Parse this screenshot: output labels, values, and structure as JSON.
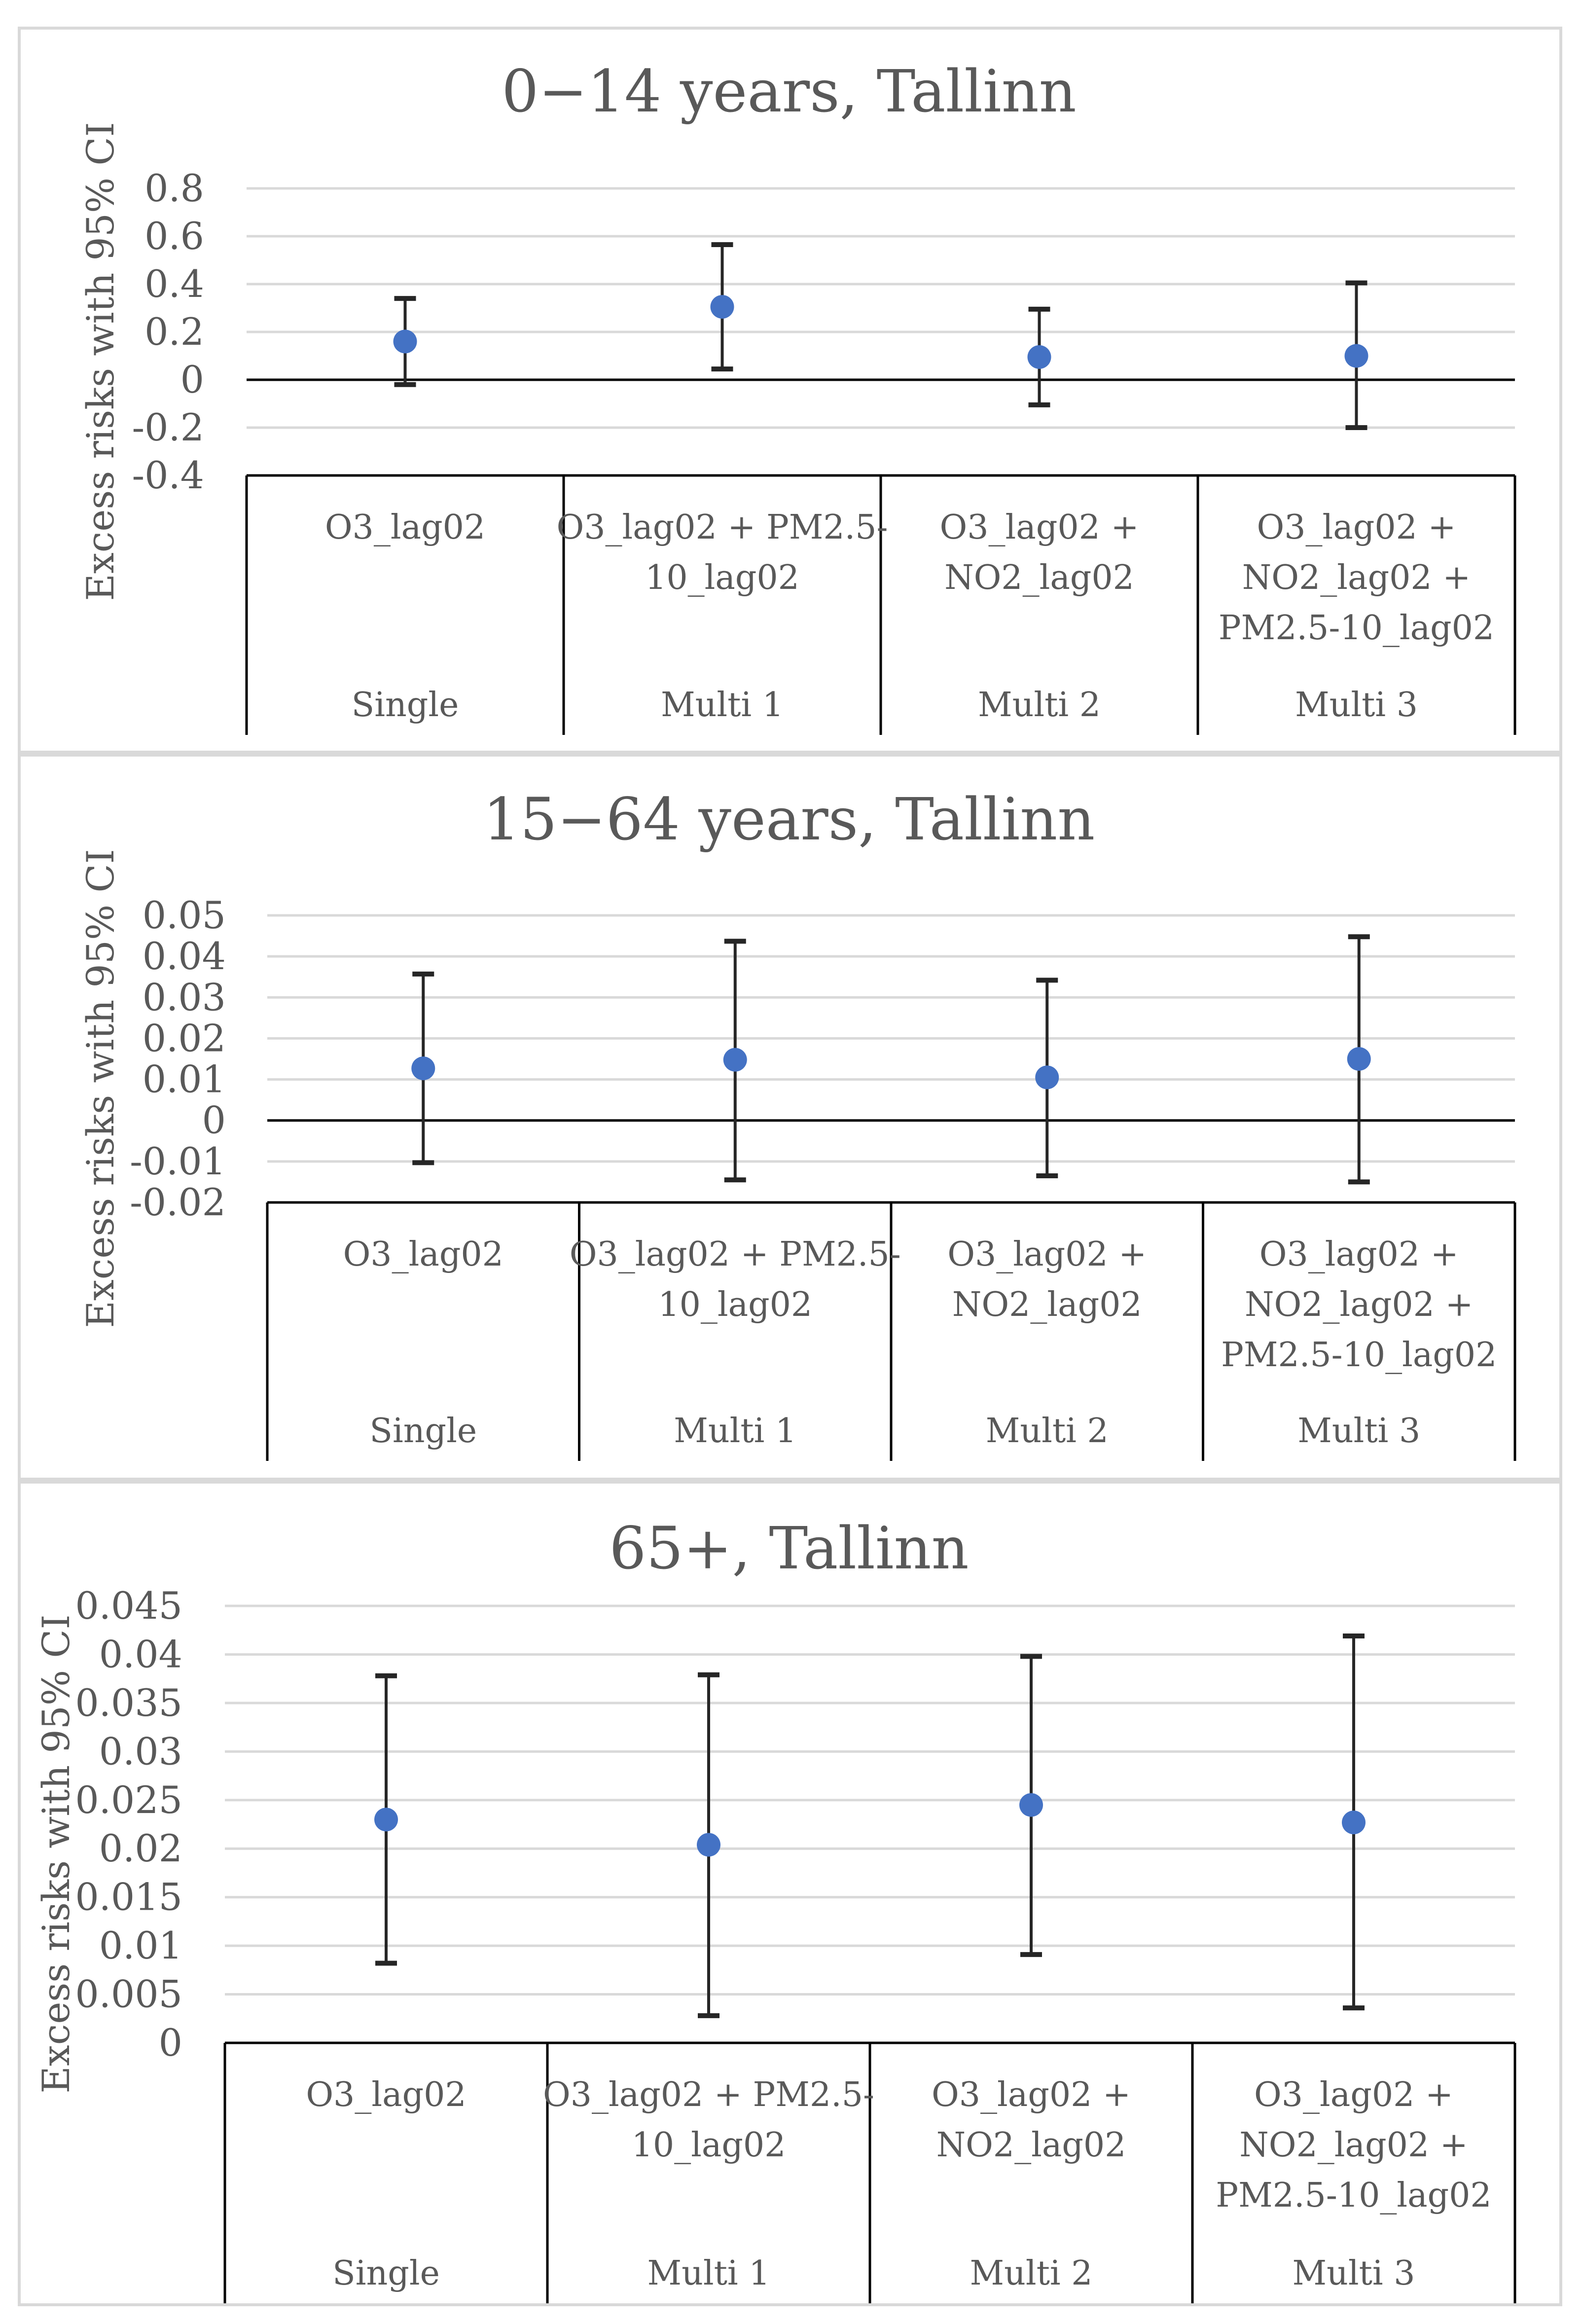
{
  "chart_data": [
    {
      "type": "scatter",
      "title": "0−14 years, Tallinn",
      "ylabel": "Excess risks with 95% CI",
      "ylim": [
        -0.4,
        0.8
      ],
      "yticks": [
        "0.8",
        "0.6",
        "0.4",
        "0.2",
        "0",
        "-0.2",
        "-0.4"
      ],
      "ytick_values": [
        0.8,
        0.6,
        0.4,
        0.2,
        0,
        -0.2,
        -0.4
      ],
      "categories": [
        {
          "model": "Single",
          "lines": [
            "O3_lag02"
          ]
        },
        {
          "model": "Multi 1",
          "lines": [
            "O3_lag02 + PM2.5-",
            "10_lag02"
          ]
        },
        {
          "model": "Multi 2",
          "lines": [
            "O3_lag02 +",
            "NO2_lag02"
          ]
        },
        {
          "model": "Multi 3",
          "lines": [
            "O3_lag02 +",
            "NO2_lag02 +",
            "PM2.5-10_lag02"
          ]
        }
      ],
      "estimate": [
        0.16,
        0.305,
        0.095,
        0.1
      ],
      "lower": [
        -0.02,
        0.045,
        -0.105,
        -0.2
      ],
      "upper": [
        0.34,
        0.565,
        0.295,
        0.405
      ]
    },
    {
      "type": "scatter",
      "title": "15−64 years, Tallinn",
      "ylabel": "Excess risks with 95% CI",
      "ylim": [
        -0.02,
        0.05
      ],
      "yticks": [
        "0.05",
        "0.04",
        "0.03",
        "0.02",
        "0.01",
        "0",
        "-0.01",
        "-0.02"
      ],
      "ytick_values": [
        0.05,
        0.04,
        0.03,
        0.02,
        0.01,
        0,
        -0.01,
        -0.02
      ],
      "categories": [
        {
          "model": "Single",
          "lines": [
            "O3_lag02"
          ]
        },
        {
          "model": "Multi 1",
          "lines": [
            "O3_lag02 + PM2.5-",
            "10_lag02"
          ]
        },
        {
          "model": "Multi 2",
          "lines": [
            "O3_lag02 +",
            "NO2_lag02"
          ]
        },
        {
          "model": "Multi 3",
          "lines": [
            "O3_lag02 +",
            "NO2_lag02 +",
            "PM2.5-10_lag02"
          ]
        }
      ],
      "estimate": [
        0.0127,
        0.0148,
        0.0105,
        0.015
      ],
      "lower": [
        -0.0103,
        -0.0145,
        -0.0135,
        -0.015
      ],
      "upper": [
        0.0357,
        0.0437,
        0.0342,
        0.0448
      ]
    },
    {
      "type": "scatter",
      "title": "65+, Tallinn",
      "ylabel": "Excess risks with 95% CI",
      "ylim": [
        0,
        0.045
      ],
      "yticks": [
        "0.045",
        "0.04",
        "0.035",
        "0.03",
        "0.025",
        "0.02",
        "0.015",
        "0.01",
        "0.005",
        "0"
      ],
      "ytick_values": [
        0.045,
        0.04,
        0.035,
        0.03,
        0.025,
        0.02,
        0.015,
        0.01,
        0.005,
        0
      ],
      "categories": [
        {
          "model": "Single",
          "lines": [
            "O3_lag02"
          ]
        },
        {
          "model": "Multi 1",
          "lines": [
            "O3_lag02 + PM2.5-",
            "10_lag02"
          ]
        },
        {
          "model": "Multi 2",
          "lines": [
            "O3_lag02 +",
            "NO2_lag02"
          ]
        },
        {
          "model": "Multi 3",
          "lines": [
            "O3_lag02 +",
            "NO2_lag02 +",
            "PM2.5-10_lag02"
          ]
        }
      ],
      "estimate": [
        0.023,
        0.0204,
        0.0245,
        0.0227
      ],
      "lower": [
        0.0082,
        0.0028,
        0.0091,
        0.0036
      ],
      "upper": [
        0.0378,
        0.0379,
        0.0398,
        0.0419
      ]
    }
  ],
  "colors": {
    "marker": "#4472c4",
    "errorbar": "#262626",
    "errorcap": "#8c5a2b",
    "grid": "#d9d9d9",
    "axis": "#000000",
    "text": "#595959",
    "border": "#d9d9d9"
  }
}
